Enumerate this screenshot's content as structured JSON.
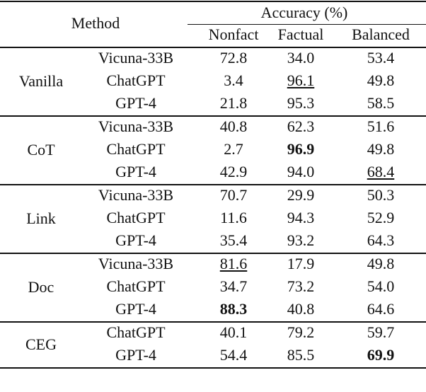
{
  "table": {
    "header": {
      "method": "Method",
      "group": "Accuracy (%)",
      "columns": [
        "Nonfact",
        "Factual",
        "Balanced"
      ]
    },
    "groups": [
      {
        "method": "Vanilla",
        "rows": [
          {
            "model": "Vicuna-33B",
            "values": [
              "72.8",
              "34.0",
              "53.4"
            ]
          },
          {
            "model": "ChatGPT",
            "values": [
              "3.4",
              "96.1",
              "49.8"
            ],
            "underline": [
              1
            ]
          },
          {
            "model": "GPT-4",
            "values": [
              "21.8",
              "95.3",
              "58.5"
            ]
          }
        ]
      },
      {
        "method": "CoT",
        "rows": [
          {
            "model": "Vicuna-33B",
            "values": [
              "40.8",
              "62.3",
              "51.6"
            ]
          },
          {
            "model": "ChatGPT",
            "values": [
              "2.7",
              "96.9",
              "49.8"
            ],
            "bold": [
              1
            ]
          },
          {
            "model": "GPT-4",
            "values": [
              "42.9",
              "94.0",
              "68.4"
            ],
            "underline": [
              2
            ]
          }
        ]
      },
      {
        "method": "Link",
        "rows": [
          {
            "model": "Vicuna-33B",
            "values": [
              "70.7",
              "29.9",
              "50.3"
            ]
          },
          {
            "model": "ChatGPT",
            "values": [
              "11.6",
              "94.3",
              "52.9"
            ]
          },
          {
            "model": "GPT-4",
            "values": [
              "35.4",
              "93.2",
              "64.3"
            ]
          }
        ]
      },
      {
        "method": "Doc",
        "rows": [
          {
            "model": "Vicuna-33B",
            "values": [
              "81.6",
              "17.9",
              "49.8"
            ],
            "underline": [
              0
            ]
          },
          {
            "model": "ChatGPT",
            "values": [
              "34.7",
              "73.2",
              "54.0"
            ]
          },
          {
            "model": "GPT-4",
            "values": [
              "88.3",
              "40.8",
              "64.6"
            ],
            "bold": [
              0
            ]
          }
        ]
      },
      {
        "method": "CEG",
        "rows": [
          {
            "model": "ChatGPT",
            "values": [
              "40.1",
              "79.2",
              "59.7"
            ]
          },
          {
            "model": "GPT-4",
            "values": [
              "54.4",
              "85.5",
              "69.9"
            ],
            "bold": [
              2
            ]
          }
        ]
      }
    ]
  }
}
